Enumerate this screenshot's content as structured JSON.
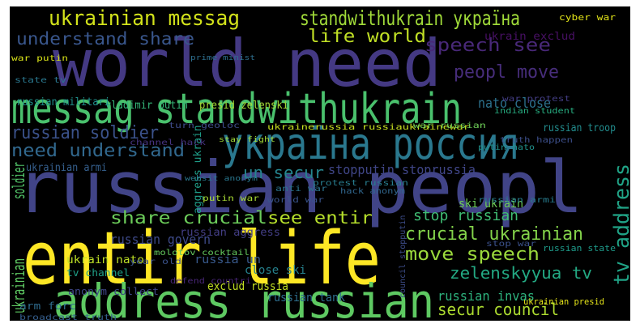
{
  "word_cloud": {
    "words": [
      {
        "text": "world need",
        "color": "#443983"
      },
      {
        "text": "messag standwithukrain",
        "color": "#4ac16d"
      },
      {
        "text": "russian peopl",
        "color": "#414487"
      },
      {
        "text": "entir life",
        "color": "#fde725"
      },
      {
        "text": "address russian",
        "color": "#5ec962"
      },
      {
        "text": "україна россия",
        "color": "#2a788e"
      },
      {
        "text": "ukrainian messag",
        "color": "#d2e21b"
      },
      {
        "text": "standwithukrain україна",
        "color": "#a0da39"
      },
      {
        "text": "understand share",
        "color": "#39568c"
      },
      {
        "text": "life world",
        "color": "#c0df25"
      },
      {
        "text": "speech see",
        "color": "#482878"
      },
      {
        "text": "peopl move",
        "color": "#472d7b"
      },
      {
        "text": "nato close",
        "color": "#2c728e"
      },
      {
        "text": "russian soldier",
        "color": "#3b528b"
      },
      {
        "text": "need understand",
        "color": "#31688e"
      },
      {
        "text": "un secur",
        "color": "#25858e"
      },
      {
        "text": "stopputin stoprussia",
        "color": "#404688"
      },
      {
        "text": "share crucial",
        "color": "#6ccd5a"
      },
      {
        "text": "see entir",
        "color": "#b5de2b"
      },
      {
        "text": "stop russian",
        "color": "#3fbc73"
      },
      {
        "text": "crucial ukrainian",
        "color": "#84d44b"
      },
      {
        "text": "move speech",
        "color": "#9bd93c"
      },
      {
        "text": "zelenskyyua tv",
        "color": "#23a983"
      },
      {
        "text": "tv address",
        "color": "#20a386"
      },
      {
        "text": "russian invas",
        "color": "#2db27d"
      },
      {
        "text": "secur council",
        "color": "#addc30"
      },
      {
        "text": "soldier",
        "color": "#52c569"
      },
      {
        "text": "ukrainian",
        "color": "#5ec962"
      },
      {
        "text": "russian govern",
        "color": "#3e4a89"
      },
      {
        "text": "russian aggress",
        "color": "#433e85"
      },
      {
        "text": "russian tank",
        "color": "#2e6e8e"
      },
      {
        "text": "exclud russia",
        "color": "#c2df23"
      },
      {
        "text": "close ski",
        "color": "#26828e"
      },
      {
        "text": "ski ukrain",
        "color": "#6ece58"
      },
      {
        "text": "ukrainian presid",
        "color": "#e5e419"
      },
      {
        "text": "vladimir putin",
        "color": "#35b779"
      },
      {
        "text": "presid zelenski",
        "color": "#a5db36"
      },
      {
        "text": "russian militari",
        "color": "#21918c"
      },
      {
        "text": "ukrainian armi",
        "color": "#355f8d"
      },
      {
        "text": "russian troop",
        "color": "#228c8d"
      },
      {
        "text": "ukrain exclud",
        "color": "#471063"
      },
      {
        "text": "russia un",
        "color": "#38598c"
      },
      {
        "text": "aggress ukrain",
        "color": "#1f9e89"
      },
      {
        "text": "ukrain nato",
        "color": "#bddf26"
      },
      {
        "text": "tv channel",
        "color": "#1fa088"
      },
      {
        "text": "anonym collect",
        "color": "#3f4788"
      },
      {
        "text": "arm forc",
        "color": "#2f6c8e"
      },
      {
        "text": "war putin",
        "color": "#d8e219"
      },
      {
        "text": "state tv",
        "color": "#2a778e"
      },
      {
        "text": "channel hack",
        "color": "#46337f"
      },
      {
        "text": "russian state",
        "color": "#1e9b8a"
      },
      {
        "text": "stop war",
        "color": "#3b518b"
      },
      {
        "text": "ukrainerussia russiaukrainewar",
        "color": "#c8e020"
      },
      {
        "text": "protest russian",
        "color": "#287d8e"
      },
      {
        "text": "anti war",
        "color": "#2b748e"
      },
      {
        "text": "putin war",
        "color": "#a8db34"
      },
      {
        "text": "world war",
        "color": "#3a548c"
      },
      {
        "text": "hack anonym",
        "color": "#31678e"
      },
      {
        "text": "molotov cocktail",
        "color": "#65cb5e"
      },
      {
        "text": "russian armi",
        "color": "#287c8e"
      },
      {
        "text": "council stopputin",
        "color": "#3d4d8a"
      },
      {
        "text": "turn geoloc",
        "color": "#3e4c8a"
      },
      {
        "text": "war russian",
        "color": "#6ece58"
      },
      {
        "text": "prime minist",
        "color": "#2e6f8e"
      },
      {
        "text": "truth happen",
        "color": "#3c4f8a"
      },
      {
        "text": "war protest",
        "color": "#433d84"
      },
      {
        "text": "indian student",
        "color": "#27ad81"
      },
      {
        "text": "putin nato",
        "color": "#20928c"
      },
      {
        "text": "broadcast truth",
        "color": "#355e8d"
      },
      {
        "text": "defend countri",
        "color": "#482677"
      },
      {
        "text": "year old",
        "color": "#3b528b"
      },
      {
        "text": "cyber war",
        "color": "#e2e418"
      },
      {
        "text": "stay fight",
        "color": "#a2da37"
      },
      {
        "text": "websit anonym",
        "color": "#2a778e"
      }
    ]
  }
}
